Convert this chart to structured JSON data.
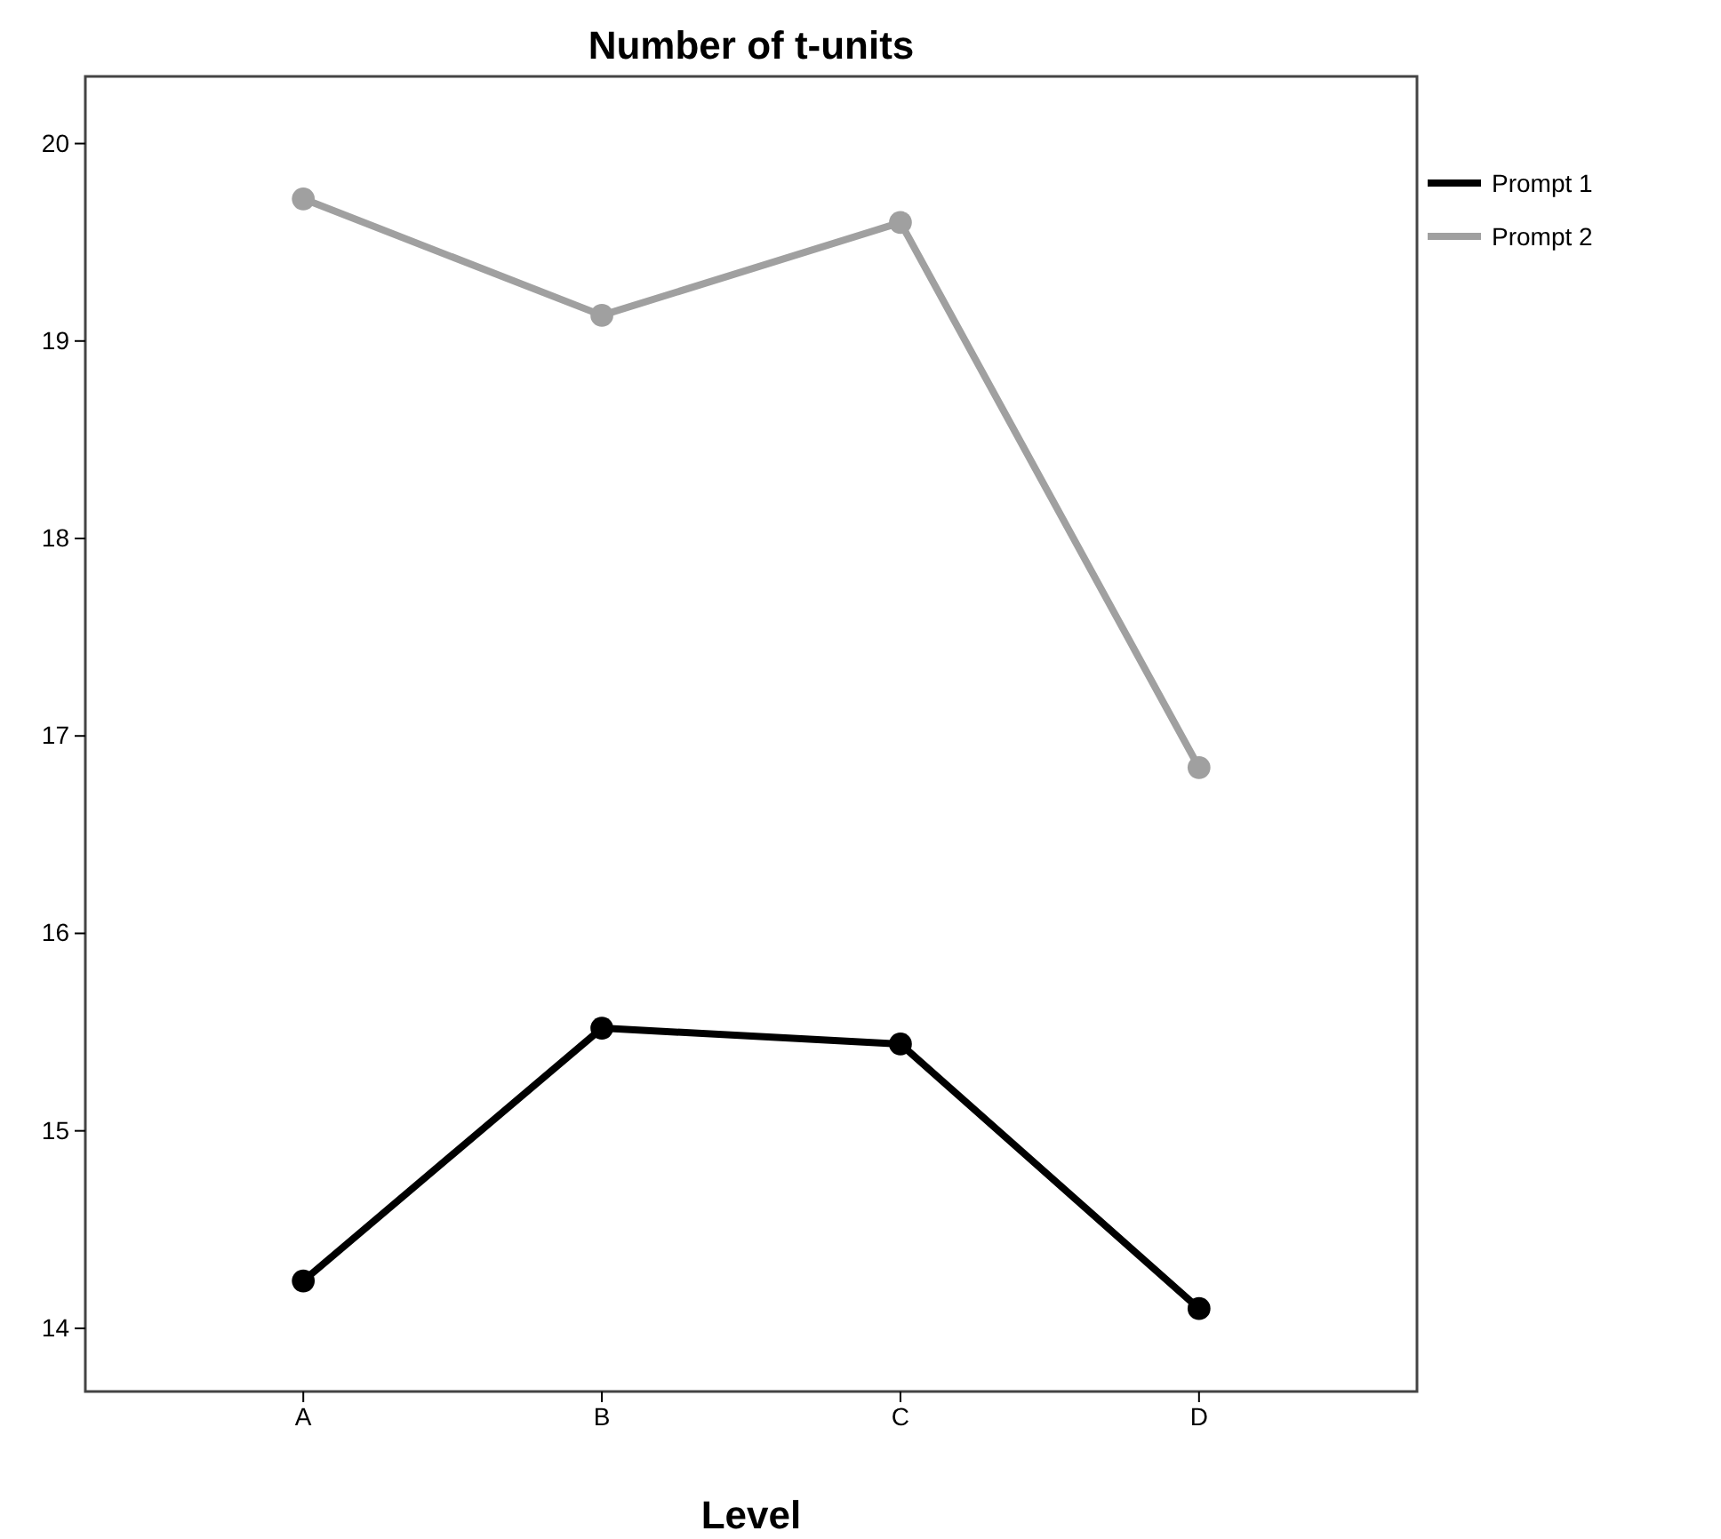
{
  "chart_data": {
    "type": "line",
    "title": "Number of t-units",
    "xlabel": "Level",
    "categories": [
      "A",
      "B",
      "C",
      "D"
    ],
    "series": [
      {
        "name": "Prompt 1",
        "color": "#000000",
        "values": [
          14.24,
          15.52,
          15.44,
          14.1
        ]
      },
      {
        "name": "Prompt 2",
        "color": "#a0a0a0",
        "values": [
          19.72,
          19.13,
          19.6,
          16.84
        ]
      }
    ],
    "ylim": [
      13.68,
      20.34
    ],
    "yticks": [
      14,
      15,
      16,
      17,
      18,
      19,
      20
    ],
    "grid": false,
    "legend": "top right",
    "marker": "circle",
    "line_style": "solid"
  }
}
